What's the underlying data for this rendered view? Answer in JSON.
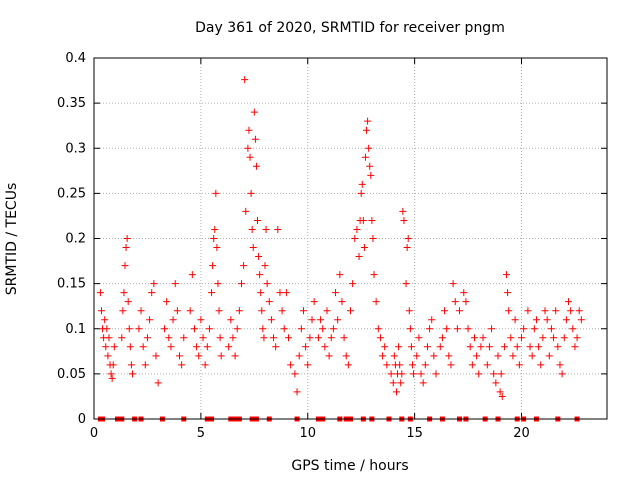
{
  "chart_data": {
    "type": "scatter",
    "title": "Day 361 of 2020, SRMTID for receiver pngm",
    "xlabel": "GPS time / hours",
    "ylabel": "SRMTID / TECUs",
    "xlim": [
      0,
      24
    ],
    "ylim": [
      0,
      0.4
    ],
    "x_ticks": [
      0,
      5,
      10,
      15,
      20
    ],
    "x_tick_labels": [
      "0",
      "5",
      "10",
      "15",
      "20"
    ],
    "y_ticks": [
      0,
      0.05,
      0.1,
      0.15,
      0.2,
      0.25,
      0.3,
      0.35,
      0.4
    ],
    "y_tick_labels": [
      "0",
      "0.05",
      "0.1",
      "0.15",
      "0.2",
      "0.25",
      "0.3",
      "0.35",
      "0.4"
    ],
    "grid": true,
    "series": [
      {
        "name": "SRMTID",
        "marker": "+",
        "color": "#ff0000",
        "points": [
          [
            0.3,
            0.14
          ],
          [
            0.35,
            0.12
          ],
          [
            0.4,
            0.1
          ],
          [
            0.45,
            0.09
          ],
          [
            0.5,
            0.11
          ],
          [
            0.55,
            0.08
          ],
          [
            0.6,
            0.1
          ],
          [
            0.65,
            0.07
          ],
          [
            0.7,
            0.09
          ],
          [
            0.75,
            0.06
          ],
          [
            0.8,
            0.05
          ],
          [
            0.85,
            0.045
          ],
          [
            0.9,
            0.06
          ],
          [
            0.95,
            0.08
          ],
          [
            1.3,
            0.09
          ],
          [
            1.35,
            0.12
          ],
          [
            1.4,
            0.14
          ],
          [
            1.45,
            0.17
          ],
          [
            1.5,
            0.19
          ],
          [
            1.55,
            0.2
          ],
          [
            1.6,
            0.13
          ],
          [
            1.65,
            0.1
          ],
          [
            1.7,
            0.08
          ],
          [
            1.75,
            0.06
          ],
          [
            1.8,
            0.05
          ],
          [
            2.1,
            0.1
          ],
          [
            2.2,
            0.12
          ],
          [
            2.3,
            0.08
          ],
          [
            2.4,
            0.06
          ],
          [
            2.5,
            0.09
          ],
          [
            2.6,
            0.11
          ],
          [
            2.7,
            0.14
          ],
          [
            2.8,
            0.15
          ],
          [
            2.9,
            0.07
          ],
          [
            3.0,
            0.04
          ],
          [
            3.3,
            0.1
          ],
          [
            3.4,
            0.13
          ],
          [
            3.5,
            0.09
          ],
          [
            3.6,
            0.08
          ],
          [
            3.7,
            0.11
          ],
          [
            3.8,
            0.15
          ],
          [
            3.9,
            0.12
          ],
          [
            4.0,
            0.07
          ],
          [
            4.1,
            0.06
          ],
          [
            4.2,
            0.09
          ],
          [
            4.5,
            0.12
          ],
          [
            4.6,
            0.16
          ],
          [
            4.7,
            0.1
          ],
          [
            4.8,
            0.08
          ],
          [
            4.9,
            0.07
          ],
          [
            5.0,
            0.11
          ],
          [
            5.1,
            0.09
          ],
          [
            5.2,
            0.06
          ],
          [
            5.3,
            0.08
          ],
          [
            5.4,
            0.1
          ],
          [
            5.5,
            0.14
          ],
          [
            5.55,
            0.17
          ],
          [
            5.6,
            0.2
          ],
          [
            5.65,
            0.21
          ],
          [
            5.7,
            0.25
          ],
          [
            5.75,
            0.19
          ],
          [
            5.8,
            0.15
          ],
          [
            5.85,
            0.12
          ],
          [
            5.9,
            0.09
          ],
          [
            5.95,
            0.07
          ],
          [
            6.3,
            0.08
          ],
          [
            6.4,
            0.11
          ],
          [
            6.5,
            0.09
          ],
          [
            6.6,
            0.07
          ],
          [
            6.7,
            0.1
          ],
          [
            6.8,
            0.12
          ],
          [
            6.9,
            0.15
          ],
          [
            7.0,
            0.17
          ],
          [
            7.1,
            0.23
          ],
          [
            7.05,
            0.376
          ],
          [
            7.2,
            0.3
          ],
          [
            7.25,
            0.32
          ],
          [
            7.3,
            0.29
          ],
          [
            7.35,
            0.25
          ],
          [
            7.4,
            0.21
          ],
          [
            7.45,
            0.19
          ],
          [
            7.5,
            0.34
          ],
          [
            7.55,
            0.31
          ],
          [
            7.6,
            0.28
          ],
          [
            7.65,
            0.22
          ],
          [
            7.7,
            0.18
          ],
          [
            7.75,
            0.16
          ],
          [
            7.8,
            0.14
          ],
          [
            7.85,
            0.12
          ],
          [
            7.9,
            0.1
          ],
          [
            7.95,
            0.09
          ],
          [
            8.0,
            0.17
          ],
          [
            8.05,
            0.21
          ],
          [
            8.1,
            0.15
          ],
          [
            8.2,
            0.13
          ],
          [
            8.3,
            0.11
          ],
          [
            8.4,
            0.09
          ],
          [
            8.5,
            0.08
          ],
          [
            8.6,
            0.21
          ],
          [
            8.7,
            0.14
          ],
          [
            8.8,
            0.12
          ],
          [
            8.9,
            0.1
          ],
          [
            9.0,
            0.14
          ],
          [
            9.1,
            0.09
          ],
          [
            9.2,
            0.06
          ],
          [
            9.4,
            0.05
          ],
          [
            9.5,
            0.03
          ],
          [
            9.6,
            0.07
          ],
          [
            9.7,
            0.1
          ],
          [
            9.8,
            0.12
          ],
          [
            9.9,
            0.08
          ],
          [
            10.0,
            0.06
          ],
          [
            10.1,
            0.09
          ],
          [
            10.2,
            0.11
          ],
          [
            10.3,
            0.13
          ],
          [
            10.5,
            0.09
          ],
          [
            10.6,
            0.11
          ],
          [
            10.7,
            0.1
          ],
          [
            10.8,
            0.08
          ],
          [
            10.9,
            0.12
          ],
          [
            11.0,
            0.07
          ],
          [
            11.1,
            0.09
          ],
          [
            11.2,
            0.1
          ],
          [
            11.3,
            0.14
          ],
          [
            11.4,
            0.11
          ],
          [
            11.5,
            0.16
          ],
          [
            11.6,
            0.13
          ],
          [
            11.7,
            0.09
          ],
          [
            11.8,
            0.07
          ],
          [
            11.9,
            0.06
          ],
          [
            12.0,
            0.12
          ],
          [
            12.1,
            0.15
          ],
          [
            12.2,
            0.2
          ],
          [
            12.3,
            0.21
          ],
          [
            12.4,
            0.18
          ],
          [
            12.45,
            0.22
          ],
          [
            12.5,
            0.25
          ],
          [
            12.55,
            0.26
          ],
          [
            12.6,
            0.22
          ],
          [
            12.65,
            0.19
          ],
          [
            12.7,
            0.29
          ],
          [
            12.75,
            0.32
          ],
          [
            12.8,
            0.33
          ],
          [
            12.85,
            0.3
          ],
          [
            12.9,
            0.28
          ],
          [
            12.95,
            0.27
          ],
          [
            13.0,
            0.22
          ],
          [
            13.05,
            0.2
          ],
          [
            13.1,
            0.16
          ],
          [
            13.2,
            0.13
          ],
          [
            13.3,
            0.1
          ],
          [
            13.4,
            0.09
          ],
          [
            13.5,
            0.07
          ],
          [
            13.6,
            0.08
          ],
          [
            13.7,
            0.06
          ],
          [
            13.9,
            0.05
          ],
          [
            14.0,
            0.04
          ],
          [
            14.05,
            0.07
          ],
          [
            14.1,
            0.06
          ],
          [
            14.15,
            0.03
          ],
          [
            14.2,
            0.05
          ],
          [
            14.25,
            0.08
          ],
          [
            14.3,
            0.06
          ],
          [
            14.35,
            0.04
          ],
          [
            14.4,
            0.05
          ],
          [
            14.45,
            0.23
          ],
          [
            14.5,
            0.22
          ],
          [
            14.6,
            0.15
          ],
          [
            14.65,
            0.19
          ],
          [
            14.7,
            0.2
          ],
          [
            14.75,
            0.12
          ],
          [
            14.8,
            0.1
          ],
          [
            14.85,
            0.08
          ],
          [
            14.9,
            0.06
          ],
          [
            14.95,
            0.05
          ],
          [
            15.1,
            0.07
          ],
          [
            15.2,
            0.09
          ],
          [
            15.3,
            0.05
          ],
          [
            15.4,
            0.04
          ],
          [
            15.5,
            0.06
          ],
          [
            15.6,
            0.08
          ],
          [
            15.7,
            0.1
          ],
          [
            15.8,
            0.11
          ],
          [
            15.9,
            0.07
          ],
          [
            16.0,
            0.05
          ],
          [
            16.2,
            0.08
          ],
          [
            16.3,
            0.09
          ],
          [
            16.4,
            0.12
          ],
          [
            16.5,
            0.1
          ],
          [
            16.6,
            0.07
          ],
          [
            16.7,
            0.06
          ],
          [
            16.8,
            0.15
          ],
          [
            16.9,
            0.13
          ],
          [
            17.0,
            0.1
          ],
          [
            17.1,
            0.12
          ],
          [
            17.3,
            0.14
          ],
          [
            17.4,
            0.13
          ],
          [
            17.5,
            0.1
          ],
          [
            17.6,
            0.08
          ],
          [
            17.7,
            0.06
          ],
          [
            17.8,
            0.09
          ],
          [
            17.9,
            0.07
          ],
          [
            18.0,
            0.05
          ],
          [
            18.1,
            0.08
          ],
          [
            18.2,
            0.09
          ],
          [
            18.4,
            0.06
          ],
          [
            18.5,
            0.08
          ],
          [
            18.6,
            0.1
          ],
          [
            18.7,
            0.05
          ],
          [
            18.8,
            0.04
          ],
          [
            18.9,
            0.07
          ],
          [
            19.0,
            0.03
          ],
          [
            19.05,
            0.05
          ],
          [
            19.1,
            0.025
          ],
          [
            19.2,
            0.08
          ],
          [
            19.3,
            0.16
          ],
          [
            19.35,
            0.14
          ],
          [
            19.4,
            0.12
          ],
          [
            19.5,
            0.09
          ],
          [
            19.6,
            0.07
          ],
          [
            19.7,
            0.11
          ],
          [
            19.8,
            0.08
          ],
          [
            19.9,
            0.06
          ],
          [
            20.0,
            0.09
          ],
          [
            20.1,
            0.1
          ],
          [
            20.3,
            0.12
          ],
          [
            20.4,
            0.08
          ],
          [
            20.5,
            0.07
          ],
          [
            20.6,
            0.1
          ],
          [
            20.7,
            0.11
          ],
          [
            20.8,
            0.08
          ],
          [
            20.9,
            0.06
          ],
          [
            21.0,
            0.09
          ],
          [
            21.1,
            0.12
          ],
          [
            21.2,
            0.11
          ],
          [
            21.3,
            0.07
          ],
          [
            21.4,
            0.1
          ],
          [
            21.5,
            0.09
          ],
          [
            21.6,
            0.12
          ],
          [
            21.7,
            0.08
          ],
          [
            21.8,
            0.06
          ],
          [
            21.9,
            0.05
          ],
          [
            22.0,
            0.09
          ],
          [
            22.1,
            0.11
          ],
          [
            22.2,
            0.13
          ],
          [
            22.3,
            0.12
          ],
          [
            22.4,
            0.1
          ],
          [
            22.5,
            0.08
          ],
          [
            22.6,
            0.09
          ],
          [
            22.7,
            0.12
          ],
          [
            22.8,
            0.11
          ]
        ]
      },
      {
        "name": "zero baseline markers",
        "marker": "square",
        "color": "#ff0000",
        "points": [
          [
            0.3,
            0
          ],
          [
            0.4,
            0
          ],
          [
            1.1,
            0
          ],
          [
            1.3,
            0
          ],
          [
            1.9,
            0
          ],
          [
            2.2,
            0
          ],
          [
            3.2,
            0
          ],
          [
            4.2,
            0
          ],
          [
            5.3,
            0
          ],
          [
            5.5,
            0
          ],
          [
            6.4,
            0
          ],
          [
            6.6,
            0
          ],
          [
            6.8,
            0
          ],
          [
            7.4,
            0
          ],
          [
            7.6,
            0
          ],
          [
            8.2,
            0
          ],
          [
            9.5,
            0
          ],
          [
            10.5,
            0
          ],
          [
            10.7,
            0
          ],
          [
            11.5,
            0
          ],
          [
            11.8,
            0
          ],
          [
            12.0,
            0
          ],
          [
            12.6,
            0
          ],
          [
            13.0,
            0
          ],
          [
            13.8,
            0
          ],
          [
            14.4,
            0
          ],
          [
            14.8,
            0
          ],
          [
            15.7,
            0
          ],
          [
            16.3,
            0
          ],
          [
            17.1,
            0
          ],
          [
            17.4,
            0
          ],
          [
            18.3,
            0
          ],
          [
            18.9,
            0
          ],
          [
            19.8,
            0
          ],
          [
            20.1,
            0
          ],
          [
            20.7,
            0
          ],
          [
            21.7,
            0
          ],
          [
            22.6,
            0
          ]
        ]
      }
    ]
  }
}
